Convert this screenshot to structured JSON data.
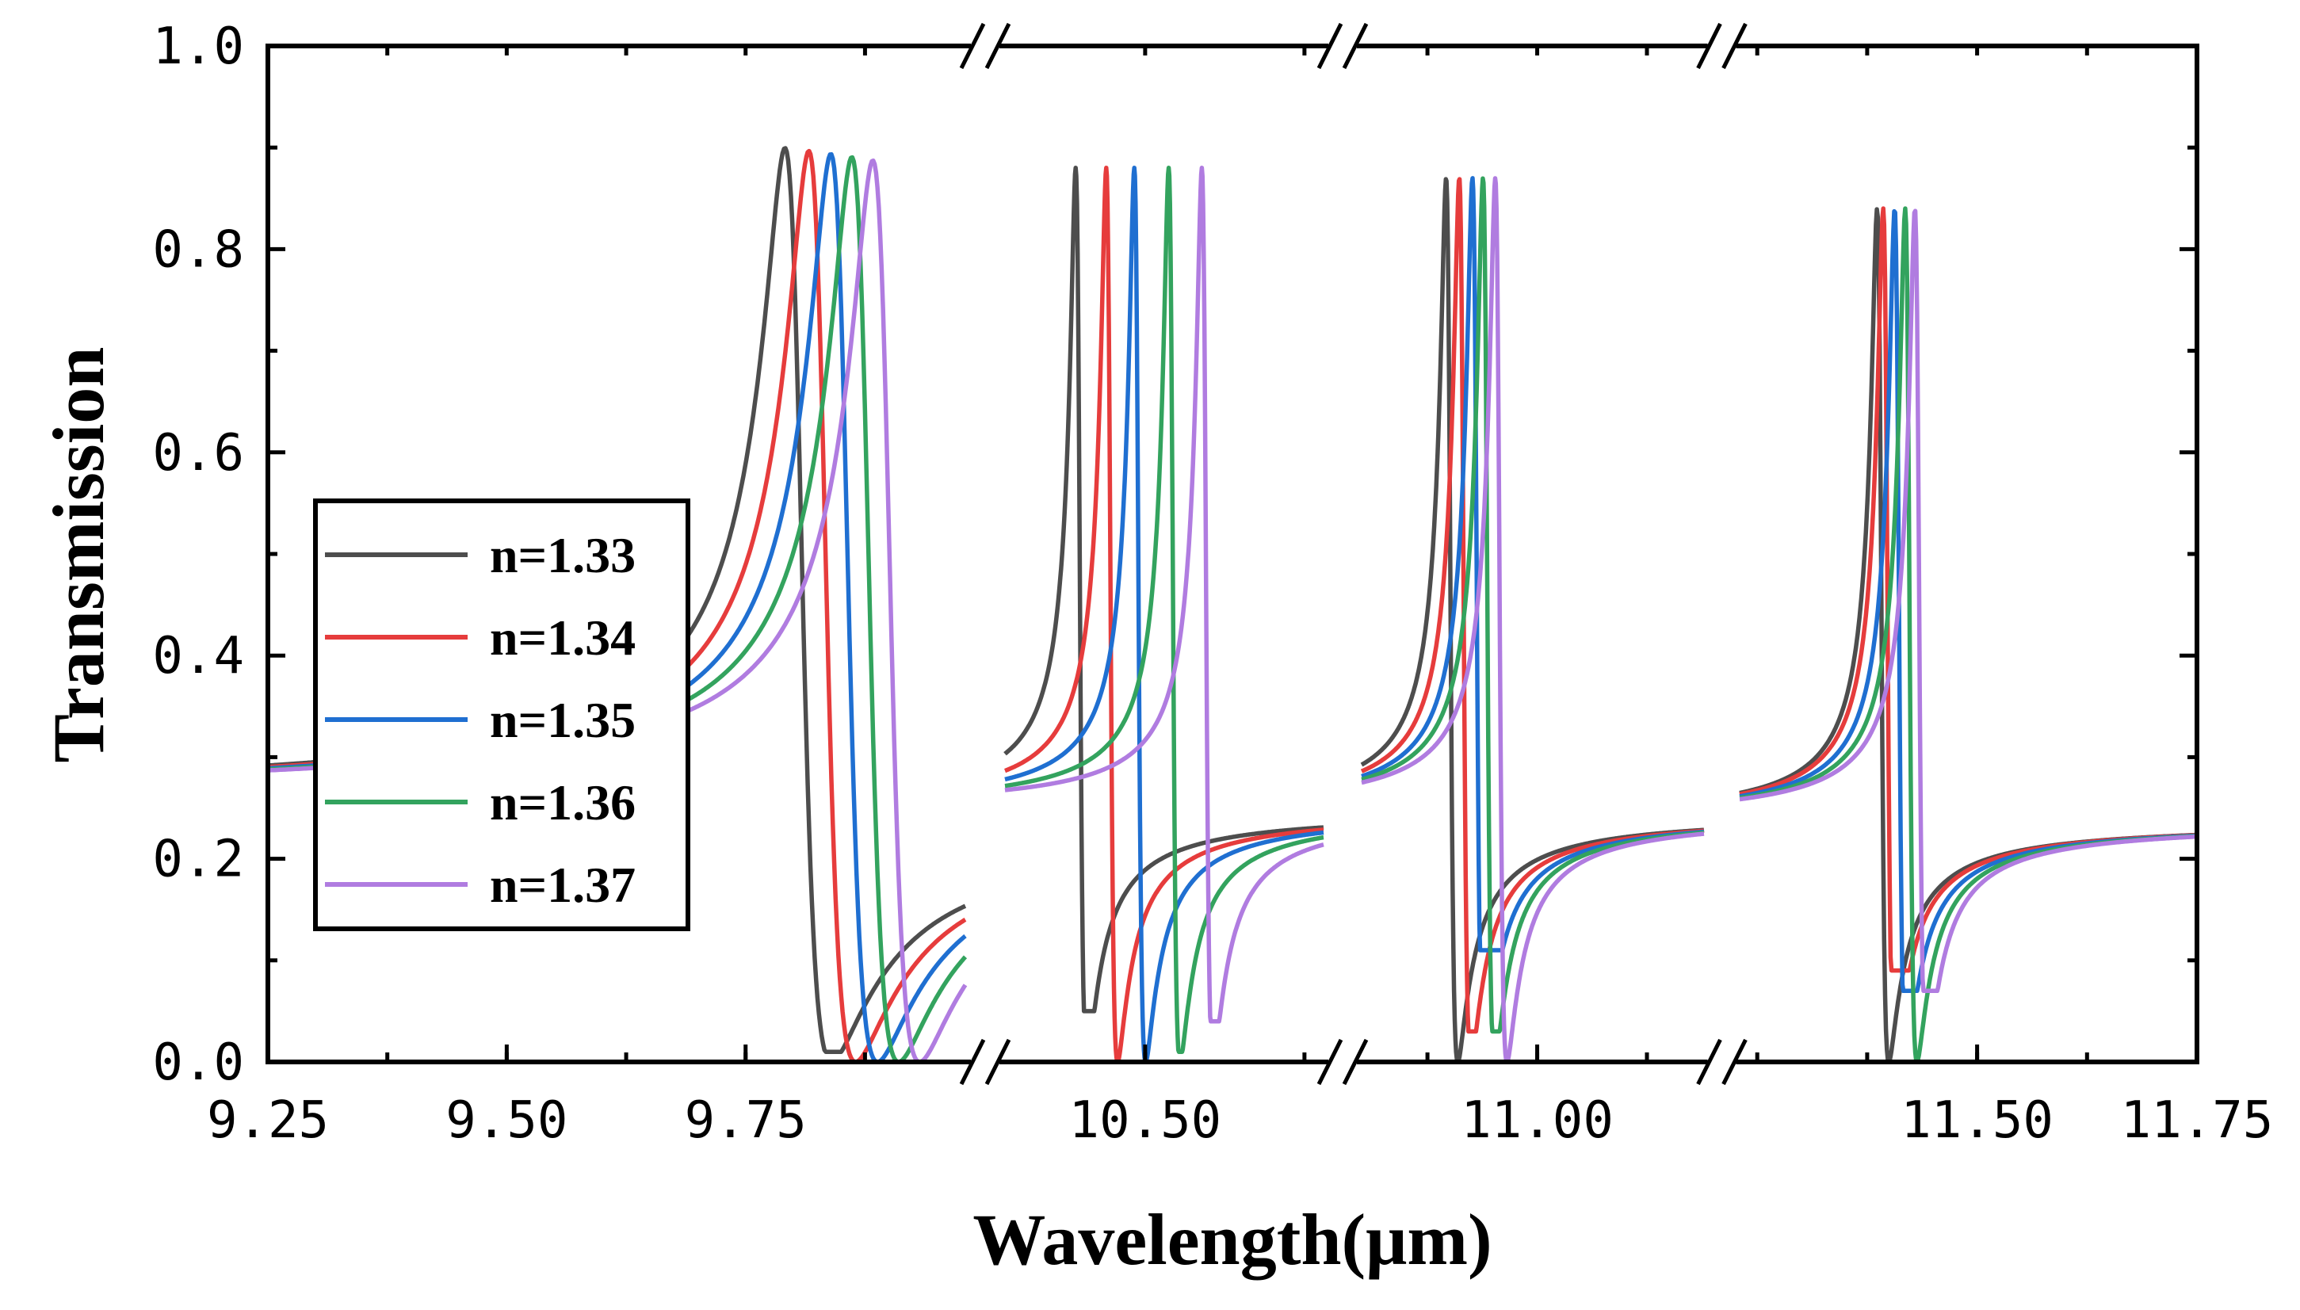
{
  "chart_data": {
    "type": "line",
    "xlabel": "Wavelength(μm)",
    "ylabel": "Transmission",
    "ylim": [
      0.0,
      1.0
    ],
    "y_ticks": [
      "0.0",
      "0.2",
      "0.4",
      "0.6",
      "0.8",
      "1.0"
    ],
    "y_tick_values": [
      0.0,
      0.2,
      0.4,
      0.6,
      0.8,
      1.0
    ],
    "x_tick_labels": [
      {
        "value": 9.25,
        "label": "9.25"
      },
      {
        "value": 9.5,
        "label": "9.50"
      },
      {
        "value": 9.75,
        "label": "9.75"
      },
      {
        "value": 10.5,
        "label": "10.50"
      },
      {
        "value": 11.0,
        "label": "11.00"
      },
      {
        "value": 11.5,
        "label": "11.50"
      },
      {
        "value": 11.75,
        "label": "11.75"
      }
    ],
    "broken_axis": true,
    "segments": [
      {
        "xmin": 9.25,
        "xmax": 9.98,
        "resonance_shift": [
          0.0,
          0.025,
          0.048,
          0.07,
          0.092
        ],
        "resonance_first": 9.805,
        "peak_first": 9.83
      },
      {
        "xmin": 10.39,
        "xmax": 10.64,
        "resonance_shift": [
          0.0,
          0.024,
          0.046,
          0.073,
          0.099
        ],
        "resonance_first": 10.448,
        "peak_first": 10.44
      },
      {
        "xmin": 10.8,
        "xmax": 11.19,
        "resonance_shift": [
          0.0,
          0.015,
          0.03,
          0.042,
          0.056
        ],
        "resonance_first": 10.9,
        "peak_first": 10.895
      },
      {
        "xmin": 11.23,
        "xmax": 11.75,
        "resonance_shift": [
          0.0,
          0.007,
          0.02,
          0.032,
          0.043
        ],
        "resonance_first": 11.39,
        "peak_first": 11.385
      }
    ],
    "legend_position": "center-left",
    "series": [
      {
        "name": "n=1.33",
        "color": "#4d4d4d",
        "min_transmission": [
          0.01,
          0.05,
          0.0,
          0.0
        ]
      },
      {
        "name": "n=1.34",
        "color": "#e63c3c",
        "min_transmission": [
          0.0,
          0.0,
          0.03,
          0.09
        ]
      },
      {
        "name": "n=1.35",
        "color": "#1f6fd1",
        "min_transmission": [
          0.0,
          0.0,
          0.11,
          0.07
        ]
      },
      {
        "name": "n=1.36",
        "color": "#33a35e",
        "min_transmission": [
          0.0,
          0.01,
          0.03,
          0.0
        ]
      },
      {
        "name": "n=1.37",
        "color": "#b07ce0",
        "min_transmission": [
          0.0,
          0.04,
          0.0,
          0.07
        ]
      }
    ]
  }
}
